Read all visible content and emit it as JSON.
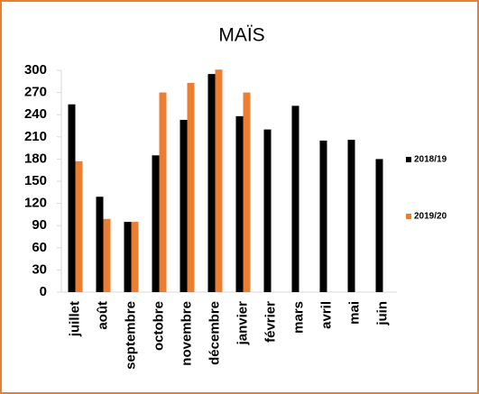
{
  "chart_data": {
    "type": "bar",
    "title": "MAÏS",
    "categories": [
      "juillet",
      "août",
      "septembre",
      "octobre",
      "novembre",
      "décembre",
      "janvier",
      "février",
      "mars",
      "avril",
      "mai",
      "juin"
    ],
    "series": [
      {
        "name": "2018/19",
        "color": "#000000",
        "values": [
          254,
          129,
          95,
          185,
          233,
          295,
          238,
          220,
          252,
          205,
          206,
          180
        ]
      },
      {
        "name": "2019/20",
        "color": "#ed7d31",
        "values": [
          177,
          99,
          95,
          270,
          283,
          301,
          270,
          null,
          null,
          null,
          null,
          null
        ]
      }
    ],
    "ylim": [
      0,
      300
    ],
    "yticks": [
      0,
      30,
      60,
      90,
      120,
      150,
      180,
      210,
      240,
      270,
      300
    ],
    "grid": false,
    "legend": "right"
  }
}
